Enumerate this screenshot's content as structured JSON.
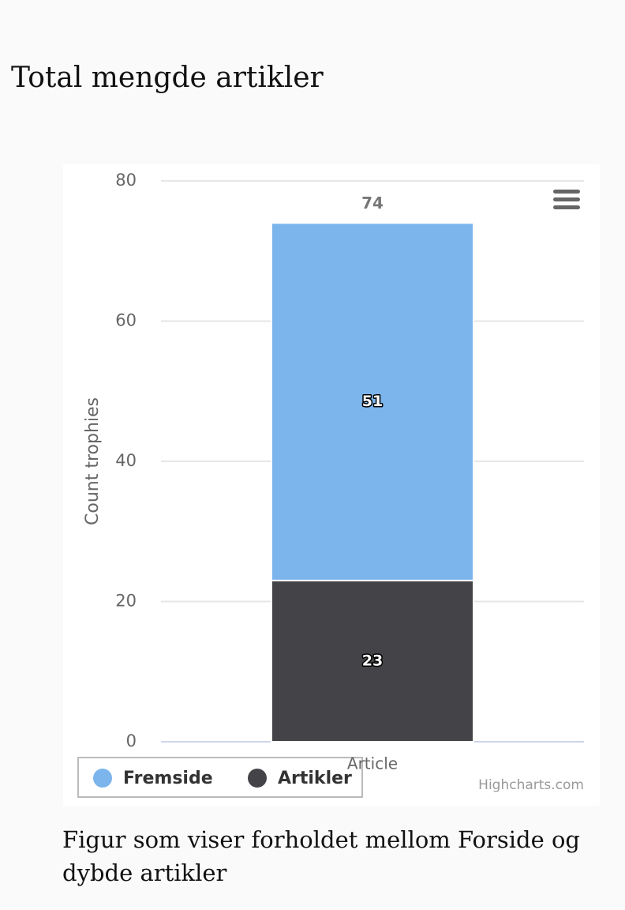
{
  "page": {
    "title": "Total mengde artikler",
    "caption": "Figur som viser forholdet mellom Forside og dybde artikler"
  },
  "chart_data": {
    "type": "bar",
    "stacked": true,
    "y_label": "Count trophies",
    "categories": [
      "Article"
    ],
    "series": [
      {
        "name": "Fremside",
        "color": "#7cb5ec",
        "values": [
          51
        ]
      },
      {
        "name": "Artikler",
        "color": "#434348",
        "values": [
          23
        ]
      }
    ],
    "stack_totals": [
      74
    ],
    "ylim": [
      0,
      80
    ],
    "yticks": [
      0,
      20,
      40,
      60,
      80
    ],
    "grid": true,
    "credits": "Highcharts.com"
  }
}
